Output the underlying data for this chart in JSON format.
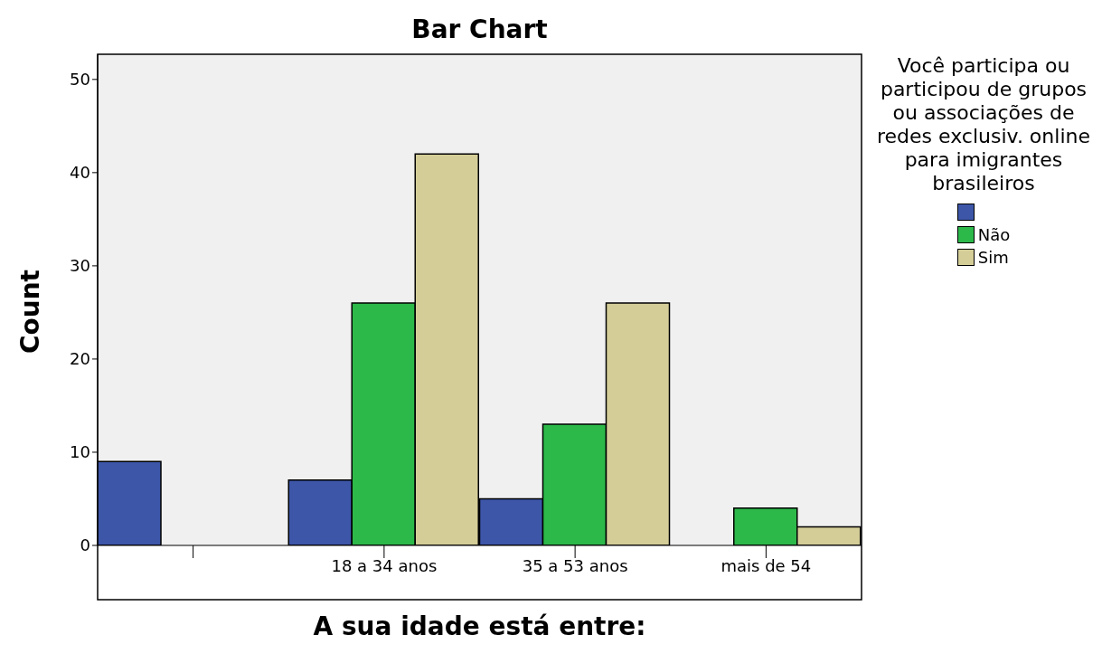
{
  "chart_data": {
    "type": "bar",
    "title": "Bar Chart",
    "xlabel": "A sua idade está entre:",
    "ylabel": "Count",
    "legend_title": "Você participa ou participou de grupos ou associações de redes exclusiv. online para imigrantes brasileiros",
    "categories": [
      null,
      "18 a 34 anos",
      "35 a 53 anos",
      "mais de 54"
    ],
    "series": [
      {
        "color": "#3d56a8",
        "values": [
          9,
          7,
          5,
          null
        ]
      },
      {
        "name": "Não",
        "color": "#2db84a",
        "values": [
          null,
          26,
          13,
          4
        ]
      },
      {
        "name": "Sim",
        "color": "#d4cd98",
        "values": [
          null,
          42,
          26,
          2
        ]
      }
    ],
    "ylim": [
      0,
      52.7
    ],
    "yticks": [
      0,
      10,
      20,
      30,
      40,
      50
    ],
    "grid": false,
    "legend": "right"
  }
}
